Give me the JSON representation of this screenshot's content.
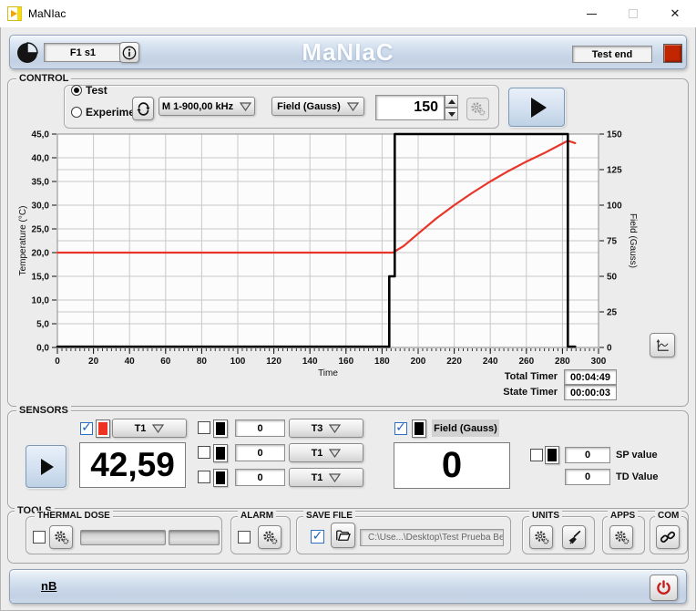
{
  "window": {
    "title": "MaNIac",
    "close_glyph": "✕"
  },
  "header": {
    "app_title": "MaNIaC",
    "vi_display": "F1 s1",
    "status_display": "Test end",
    "status_color": "#c22600"
  },
  "control": {
    "label": "CONTROL",
    "radio_test": "Test",
    "radio_experiment": "Experiment",
    "mode_dropdown": "M 1-900,00 kHz",
    "unit_dropdown": "Field (Gauss)",
    "setpoint_value": "150",
    "timers": {
      "total_label": "Total Timer",
      "total_value": "00:04:49",
      "state_label": "State Timer",
      "state_value": "00:00:03"
    }
  },
  "chart_data": {
    "type": "line",
    "xlabel": "Time",
    "ylabel_left": "Temperature (°C)",
    "ylabel_right": "Field (Gauss)",
    "xlim": [
      0,
      300
    ],
    "ylim_left": [
      0,
      45
    ],
    "ylim_right": [
      0,
      150
    ],
    "grid": true,
    "x_ticks": [
      0,
      20,
      40,
      60,
      80,
      100,
      120,
      140,
      160,
      180,
      200,
      220,
      240,
      260,
      280,
      300
    ],
    "x_tick_labels": [
      "0",
      "20",
      "40",
      "60",
      "80",
      "100",
      "120",
      "140",
      "160",
      "180",
      "200",
      "220",
      "240",
      "260",
      "280",
      "300"
    ],
    "y_ticks_left_values": [
      0,
      5,
      10,
      15,
      20,
      25,
      30,
      35,
      40,
      45
    ],
    "y_ticks_left_labels": [
      "0,0",
      "5,0",
      "10,0",
      "15,0",
      "20,0",
      "25,0",
      "30,0",
      "35,0",
      "40,0",
      "45,0"
    ],
    "y_ticks_right_values": [
      0,
      25,
      50,
      75,
      100,
      125,
      150
    ],
    "y_ticks_right_labels": [
      "0",
      "25",
      "50",
      "75",
      "100",
      "125",
      "150"
    ],
    "series": [
      {
        "name": "Temperature",
        "axis": "left",
        "color": "#e8352a",
        "width": 2.2,
        "points": [
          [
            0,
            20
          ],
          [
            186,
            20
          ],
          [
            192,
            21.4
          ],
          [
            200,
            24
          ],
          [
            210,
            27.2
          ],
          [
            220,
            30
          ],
          [
            230,
            32.6
          ],
          [
            240,
            35
          ],
          [
            250,
            37.2
          ],
          [
            260,
            39.2
          ],
          [
            270,
            41
          ],
          [
            278,
            42.6
          ],
          [
            283,
            43.6
          ],
          [
            287,
            43.1
          ]
        ]
      },
      {
        "name": "Field",
        "axis": "right",
        "color": "#000000",
        "width": 2.6,
        "points": [
          [
            0,
            0.5
          ],
          [
            184,
            0.5
          ],
          [
            184,
            50
          ],
          [
            187,
            50
          ],
          [
            187,
            150
          ],
          [
            283,
            150
          ],
          [
            283,
            0.5
          ],
          [
            287,
            0.5
          ]
        ]
      }
    ]
  },
  "sensors": {
    "label": "SENSORS",
    "primary": {
      "channel": "T1",
      "value": "42,59",
      "swatch_color": "#ee3322"
    },
    "rows": [
      {
        "value": "0",
        "channel": "T3",
        "swatch_color": "#000000"
      },
      {
        "value": "0",
        "channel": "T1",
        "swatch_color": "#000000"
      },
      {
        "value": "0",
        "channel": "T1",
        "swatch_color": "#000000"
      }
    ],
    "field": {
      "label": "Field (Gauss)",
      "value": "0",
      "swatch_color": "#000000"
    },
    "sp": {
      "value": "0",
      "label": "SP value",
      "swatch_color": "#000000"
    },
    "td": {
      "value": "0",
      "label": "TD Value"
    }
  },
  "tools": {
    "label": "TOOLS",
    "thermal_dose": {
      "label": "THERMAL DOSE"
    },
    "alarm": {
      "label": "ALARM"
    },
    "save_file": {
      "label": "SAVE FILE",
      "path": "C:\\Use...\\Desktop\\Test Prueba Bea.txt"
    },
    "units": {
      "label": "UNITS"
    },
    "apps": {
      "label": "APPS"
    },
    "com": {
      "label": "COM"
    }
  },
  "footer": {
    "home_label": "nB"
  }
}
